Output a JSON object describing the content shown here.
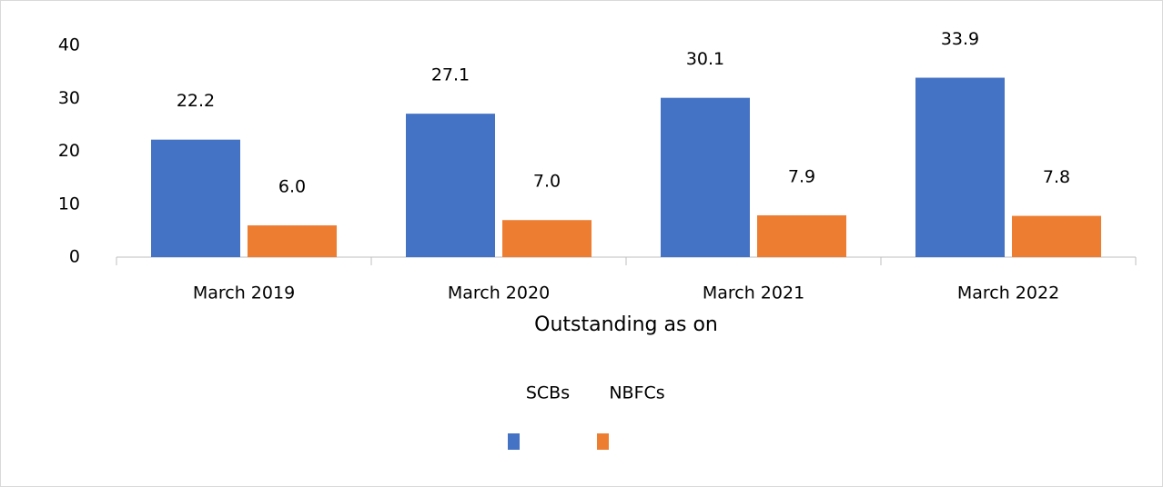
{
  "chart_data": {
    "type": "bar",
    "x_label": "Outstanding as on",
    "categories": [
      "March 2019",
      "March 2020",
      "March 2021",
      "March 2022"
    ],
    "series": [
      {
        "name": "SCBs",
        "color": "#4472c4",
        "values": [
          22.2,
          27.1,
          30.1,
          33.9
        ],
        "value_labels": [
          "22.2",
          "27.1",
          "30.1",
          "33.9"
        ]
      },
      {
        "name": "NBFCs",
        "color": "#ed7d31",
        "values": [
          6.0,
          7.0,
          7.9,
          7.8
        ],
        "value_labels": [
          "6.0",
          "7.0",
          "7.9",
          "7.8"
        ]
      }
    ],
    "ylim": [
      0,
      40
    ],
    "yticks": [
      0,
      10,
      20,
      30,
      40
    ],
    "grid": false
  }
}
